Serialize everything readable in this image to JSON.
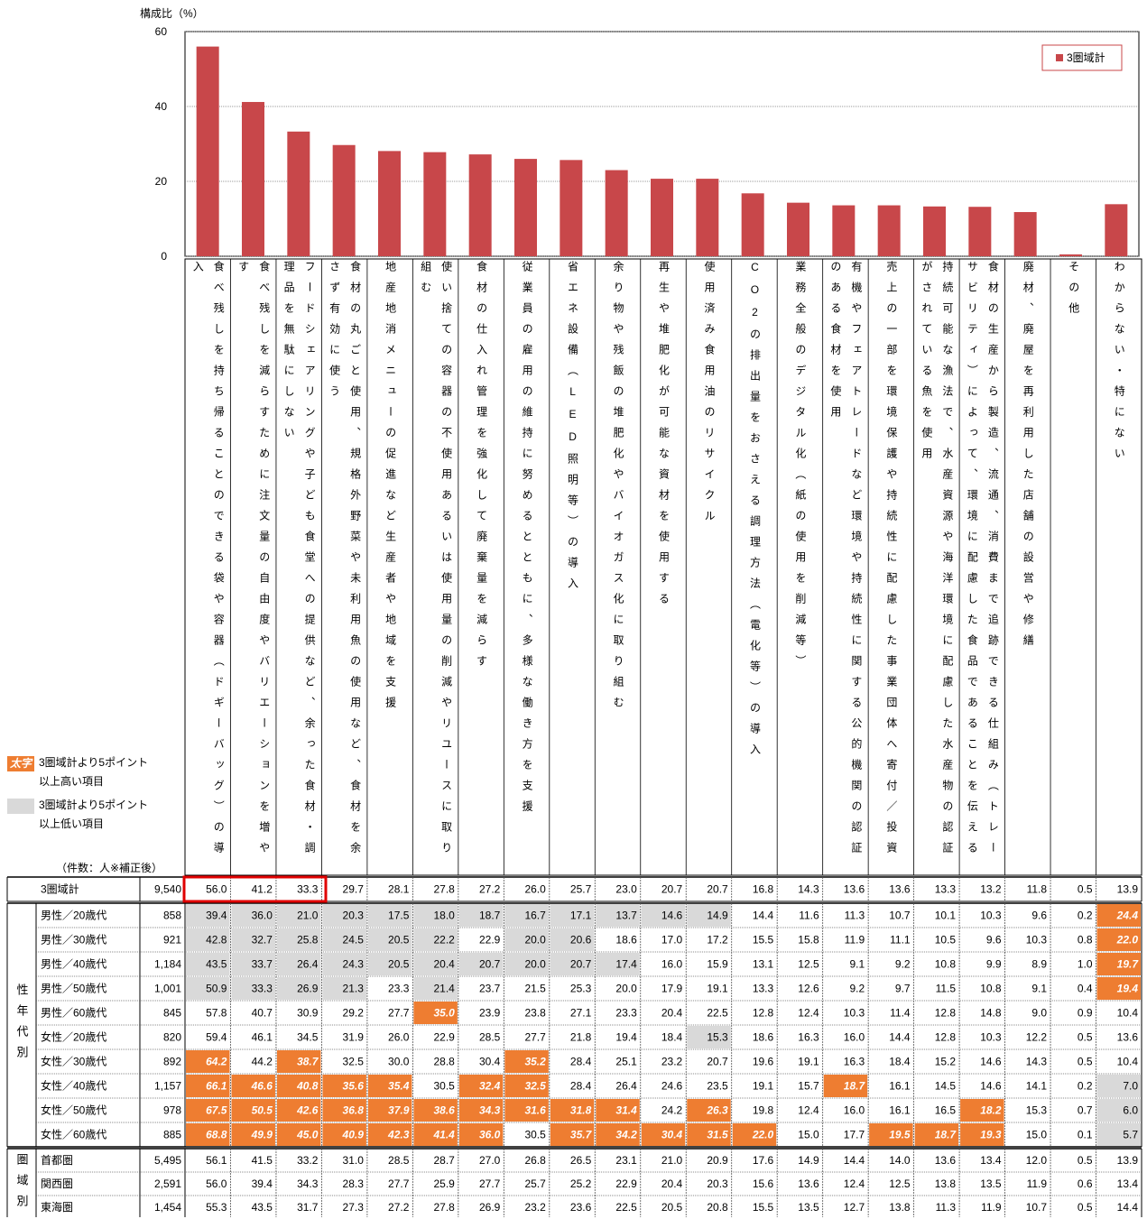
{
  "chart_data": {
    "type": "bar",
    "ylabel": "構成比（%）",
    "categories": [
      "食べ残しを持ち帰ることのできる袋や容器（ドギーバッグ）の導入",
      "食べ残しを減らすために注文量の自由度やバリエーションを増やす",
      "フードシェアリングや子ども食堂への提供など、余った食材・調理品を無駄にしない",
      "食材の丸ごと使用、規格外野菜や未利用魚の使用など、食材を余さず有効に使う",
      "地産地消メニューの促進など生産者や地域を支援",
      "使い捨ての容器の不使用あるいは使用量の削減やリユースに取り組む",
      "食材の仕入れ管理を強化して廃棄量を減らす",
      "従業員の雇用の維持に努めるとともに、多様な働き方を支援",
      "省エネ設備（LED照明等）の導入",
      "余り物や残飯の堆肥化やバイオガス化に取り組む",
      "再生や堆肥化が可能な資材を使用する",
      "使用済み食用油のリサイクル",
      "CO2の排出量をおさえる調理方法（電化等）の導入",
      "業務全般のデジタル化（紙の使用を削減等）",
      "有機やフェアトレードなど環境や持続性に関する公的機関の認証のある食材を使用",
      "売上の一部を環境保護や持続性に配慮した事業団体へ寄付／投資",
      "持続可能な漁法で、水産資源や海洋環境に配慮した水産物の認証がされている魚を使用",
      "食材の生産から製造、流通、消費まで追跡できる仕組み（トレーサビリティ）によって、環境に配慮した食品であることを伝える",
      "廃材、廃屋を再利用した店舗の設営や修繕",
      "その他",
      "わからない・特にない"
    ],
    "series": [
      {
        "name": "3圏域計",
        "color": "#c8474a",
        "values": [
          56.0,
          41.2,
          33.3,
          29.7,
          28.1,
          27.8,
          27.2,
          26.0,
          25.7,
          23.0,
          20.7,
          20.7,
          16.8,
          14.3,
          13.6,
          13.6,
          13.3,
          13.2,
          11.8,
          0.5,
          13.9
        ]
      }
    ],
    "ylim": [
      0,
      60
    ],
    "yticks": [
      0,
      20,
      40,
      60
    ],
    "grid": true,
    "legend": "top-right"
  },
  "legend": {
    "high": {
      "sample": "太字",
      "text": "3圏域計より5ポイント以上高い項目",
      "color": "#ee7d31"
    },
    "low": {
      "text": "3圏域計より5ポイント以上低い項目",
      "color": "#d9d9d9"
    }
  },
  "table": {
    "count_note": "（件数：人※補正後）",
    "total": {
      "label": "3圏域計",
      "count": "9,540",
      "values": [
        "56.0",
        "41.2",
        "33.3",
        "29.7",
        "28.1",
        "27.8",
        "27.2",
        "26.0",
        "25.7",
        "23.0",
        "20.7",
        "20.7",
        "16.8",
        "14.3",
        "13.6",
        "13.6",
        "13.3",
        "13.2",
        "11.8",
        "0.5",
        "13.9"
      ]
    },
    "groups": [
      {
        "label": "性年代別",
        "rows": [
          {
            "label": "男性／20歳代",
            "count": "858",
            "values": [
              "39.4",
              "36.0",
              "21.0",
              "20.3",
              "17.5",
              "18.0",
              "18.7",
              "16.7",
              "17.1",
              "13.7",
              "14.6",
              "14.9",
              "14.4",
              "11.6",
              "11.3",
              "10.7",
              "10.1",
              "10.3",
              "9.6",
              "0.2",
              "24.4"
            ],
            "styles": [
              "low",
              "low",
              "low",
              "low",
              "low",
              "low",
              "low",
              "low",
              "low",
              "low",
              "low",
              "low",
              null,
              null,
              null,
              null,
              null,
              null,
              null,
              null,
              "high"
            ]
          },
          {
            "label": "男性／30歳代",
            "count": "921",
            "values": [
              "42.8",
              "32.7",
              "25.8",
              "24.5",
              "20.5",
              "22.2",
              "22.9",
              "20.0",
              "20.6",
              "18.6",
              "17.0",
              "17.2",
              "15.5",
              "15.8",
              "11.9",
              "11.1",
              "10.5",
              "9.6",
              "10.3",
              "0.8",
              "22.0"
            ],
            "styles": [
              "low",
              "low",
              "low",
              "low",
              "low",
              "low",
              null,
              "low",
              "low",
              null,
              null,
              null,
              null,
              null,
              null,
              null,
              null,
              null,
              null,
              null,
              "high"
            ]
          },
          {
            "label": "男性／40歳代",
            "count": "1,184",
            "values": [
              "43.5",
              "33.7",
              "26.4",
              "24.3",
              "20.5",
              "20.4",
              "20.7",
              "20.0",
              "20.7",
              "17.4",
              "16.0",
              "15.9",
              "13.1",
              "12.5",
              "9.1",
              "9.2",
              "10.8",
              "9.9",
              "8.9",
              "1.0",
              "19.7"
            ],
            "styles": [
              "low",
              "low",
              "low",
              "low",
              "low",
              "low",
              "low",
              "low",
              "low",
              "low",
              null,
              null,
              null,
              null,
              null,
              null,
              null,
              null,
              null,
              null,
              "high"
            ]
          },
          {
            "label": "男性／50歳代",
            "count": "1,001",
            "values": [
              "50.9",
              "33.3",
              "26.9",
              "21.3",
              "23.3",
              "21.4",
              "23.7",
              "21.5",
              "25.3",
              "20.0",
              "17.9",
              "19.1",
              "13.3",
              "12.6",
              "9.2",
              "9.7",
              "11.5",
              "10.8",
              "9.1",
              "0.4",
              "19.4"
            ],
            "styles": [
              "low",
              "low",
              "low",
              "low",
              null,
              "low",
              null,
              null,
              null,
              null,
              null,
              null,
              null,
              null,
              null,
              null,
              null,
              null,
              null,
              null,
              "high"
            ]
          },
          {
            "label": "男性／60歳代",
            "count": "845",
            "values": [
              "57.8",
              "40.7",
              "30.9",
              "29.2",
              "27.7",
              "35.0",
              "23.9",
              "23.8",
              "27.1",
              "23.3",
              "20.4",
              "22.5",
              "12.8",
              "12.4",
              "10.3",
              "11.4",
              "12.8",
              "14.8",
              "9.0",
              "0.9",
              "10.4"
            ],
            "styles": [
              null,
              null,
              null,
              null,
              null,
              "high",
              null,
              null,
              null,
              null,
              null,
              null,
              null,
              null,
              null,
              null,
              null,
              null,
              null,
              null,
              null
            ]
          },
          {
            "label": "女性／20歳代",
            "count": "820",
            "values": [
              "59.4",
              "46.1",
              "34.5",
              "31.9",
              "26.0",
              "22.9",
              "28.5",
              "27.7",
              "21.8",
              "19.4",
              "18.4",
              "15.3",
              "18.6",
              "16.3",
              "16.0",
              "14.4",
              "12.8",
              "10.3",
              "12.2",
              "0.5",
              "13.6"
            ],
            "styles": [
              null,
              null,
              null,
              null,
              null,
              null,
              null,
              null,
              null,
              null,
              null,
              "low",
              null,
              null,
              null,
              null,
              null,
              null,
              null,
              null,
              null
            ]
          },
          {
            "label": "女性／30歳代",
            "count": "892",
            "values": [
              "64.2",
              "44.2",
              "38.7",
              "32.5",
              "30.0",
              "28.8",
              "30.4",
              "35.2",
              "28.4",
              "25.1",
              "23.2",
              "20.7",
              "19.6",
              "19.1",
              "16.3",
              "18.4",
              "15.2",
              "14.6",
              "14.3",
              "0.5",
              "10.4"
            ],
            "styles": [
              "high",
              null,
              "high",
              null,
              null,
              null,
              null,
              "high",
              null,
              null,
              null,
              null,
              null,
              null,
              null,
              null,
              null,
              null,
              null,
              null,
              null
            ]
          },
          {
            "label": "女性／40歳代",
            "count": "1,157",
            "values": [
              "66.1",
              "46.6",
              "40.8",
              "35.6",
              "35.4",
              "30.5",
              "32.4",
              "32.5",
              "28.4",
              "26.4",
              "24.6",
              "23.5",
              "19.1",
              "15.7",
              "18.7",
              "16.1",
              "14.5",
              "14.6",
              "14.1",
              "0.2",
              "7.0"
            ],
            "styles": [
              "high",
              "high",
              "high",
              "high",
              "high",
              null,
              "high",
              "high",
              null,
              null,
              null,
              null,
              null,
              null,
              "high",
              null,
              null,
              null,
              null,
              null,
              "low"
            ]
          },
          {
            "label": "女性／50歳代",
            "count": "978",
            "values": [
              "67.5",
              "50.5",
              "42.6",
              "36.8",
              "37.9",
              "38.6",
              "34.3",
              "31.6",
              "31.8",
              "31.4",
              "24.2",
              "26.3",
              "19.8",
              "12.4",
              "16.0",
              "16.1",
              "16.5",
              "18.2",
              "15.3",
              "0.7",
              "6.0"
            ],
            "styles": [
              "high",
              "high",
              "high",
              "high",
              "high",
              "high",
              "high",
              "high",
              "high",
              "high",
              null,
              "high",
              null,
              null,
              null,
              null,
              null,
              "high",
              null,
              null,
              "low"
            ]
          },
          {
            "label": "女性／60歳代",
            "count": "885",
            "values": [
              "68.8",
              "49.9",
              "45.0",
              "40.9",
              "42.3",
              "41.4",
              "36.0",
              "30.5",
              "35.7",
              "34.2",
              "30.4",
              "31.5",
              "22.0",
              "15.0",
              "17.7",
              "19.5",
              "18.7",
              "19.3",
              "15.0",
              "0.1",
              "5.7"
            ],
            "styles": [
              "high",
              "high",
              "high",
              "high",
              "high",
              "high",
              "high",
              null,
              "high",
              "high",
              "high",
              "high",
              "high",
              null,
              null,
              "high",
              "high",
              "high",
              null,
              null,
              "low"
            ]
          }
        ]
      },
      {
        "label": "圏域別",
        "rows": [
          {
            "label": "首都圏",
            "count": "5,495",
            "values": [
              "56.1",
              "41.5",
              "33.2",
              "31.0",
              "28.5",
              "28.7",
              "27.0",
              "26.8",
              "26.5",
              "23.1",
              "21.0",
              "20.9",
              "17.6",
              "14.9",
              "14.4",
              "14.0",
              "13.6",
              "13.4",
              "12.0",
              "0.5",
              "13.9"
            ],
            "styles": [
              null,
              null,
              null,
              null,
              null,
              null,
              null,
              null,
              null,
              null,
              null,
              null,
              null,
              null,
              null,
              null,
              null,
              null,
              null,
              null,
              null
            ]
          },
          {
            "label": "関西圏",
            "count": "2,591",
            "values": [
              "56.0",
              "39.4",
              "34.3",
              "28.3",
              "27.7",
              "25.9",
              "27.7",
              "25.7",
              "25.2",
              "22.9",
              "20.4",
              "20.3",
              "15.6",
              "13.6",
              "12.4",
              "12.5",
              "13.8",
              "13.5",
              "11.9",
              "0.6",
              "13.4"
            ],
            "styles": [
              null,
              null,
              null,
              null,
              null,
              null,
              null,
              null,
              null,
              null,
              null,
              null,
              null,
              null,
              null,
              null,
              null,
              null,
              null,
              null,
              null
            ]
          },
          {
            "label": "東海圏",
            "count": "1,454",
            "values": [
              "55.3",
              "43.5",
              "31.7",
              "27.3",
              "27.2",
              "27.8",
              "26.9",
              "23.2",
              "23.6",
              "22.5",
              "20.5",
              "20.8",
              "15.5",
              "13.5",
              "12.7",
              "13.8",
              "11.3",
              "11.9",
              "10.7",
              "0.5",
              "14.4"
            ],
            "styles": [
              null,
              null,
              null,
              null,
              null,
              null,
              null,
              null,
              null,
              null,
              null,
              null,
              null,
              null,
              null,
              null,
              null,
              null,
              null,
              null,
              null
            ]
          }
        ]
      }
    ]
  }
}
